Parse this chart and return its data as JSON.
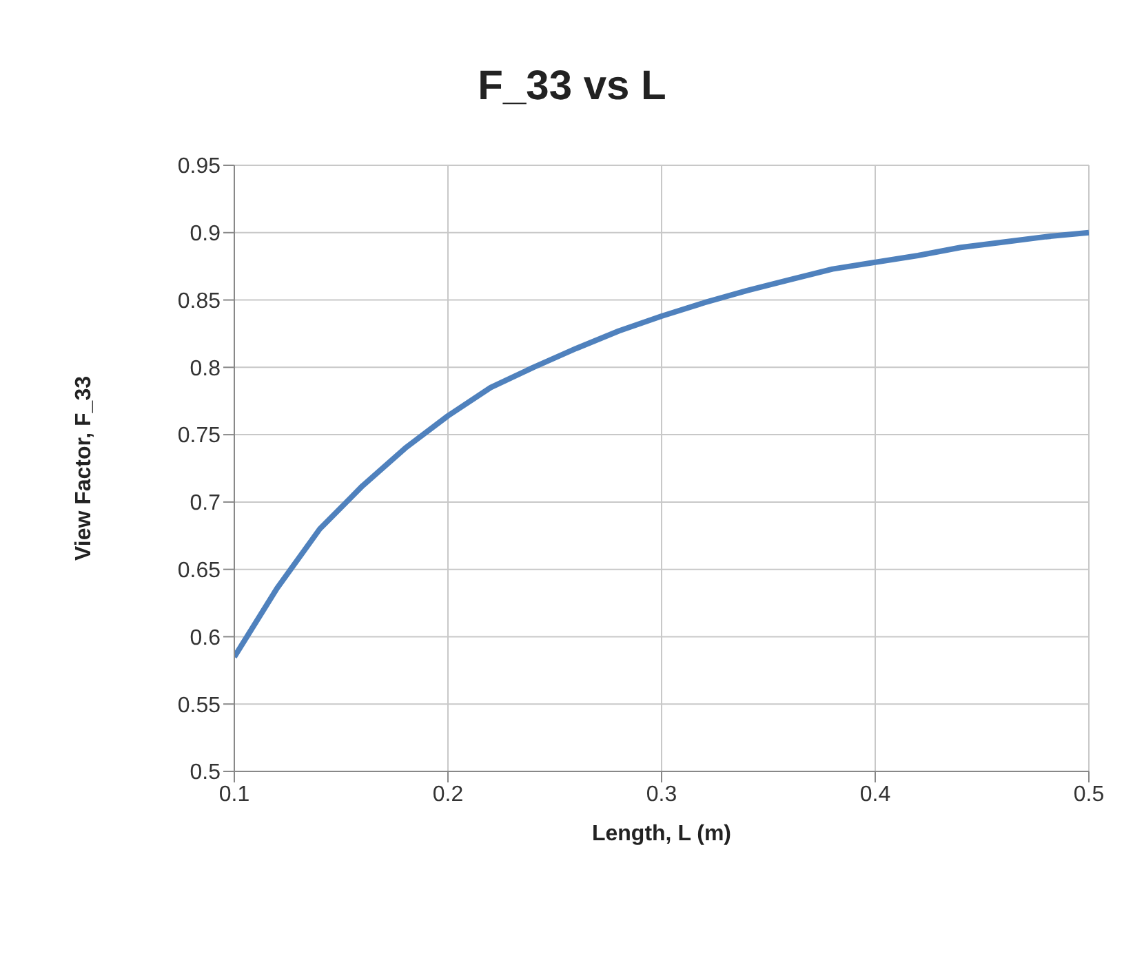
{
  "chart_data": {
    "type": "line",
    "title": "F_33 vs L",
    "xlabel": "Length, L (m)",
    "ylabel": "View Factor, F_33",
    "x": [
      0.1,
      0.12,
      0.14,
      0.16,
      0.18,
      0.2,
      0.22,
      0.24,
      0.26,
      0.28,
      0.3,
      0.32,
      0.34,
      0.36,
      0.38,
      0.4,
      0.42,
      0.44,
      0.46,
      0.48,
      0.5
    ],
    "series": [
      {
        "color": "#4f81bd",
        "values": [
          0.585,
          0.636,
          0.68,
          0.712,
          0.74,
          0.764,
          0.785,
          0.8,
          0.814,
          0.827,
          0.838,
          0.848,
          0.857,
          0.865,
          0.873,
          0.878,
          0.883,
          0.889,
          0.893,
          0.897,
          0.9
        ]
      }
    ],
    "xlim": [
      0.1,
      0.5
    ],
    "xticks": [
      0.1,
      0.2,
      0.3,
      0.4,
      0.5
    ],
    "ylim": [
      0.5,
      0.95
    ],
    "yticks": [
      0.5,
      0.55,
      0.6,
      0.65,
      0.7,
      0.75,
      0.8,
      0.85,
      0.9,
      0.95
    ],
    "grid": true,
    "legend": false,
    "marker": "none",
    "line_style": "solid"
  }
}
